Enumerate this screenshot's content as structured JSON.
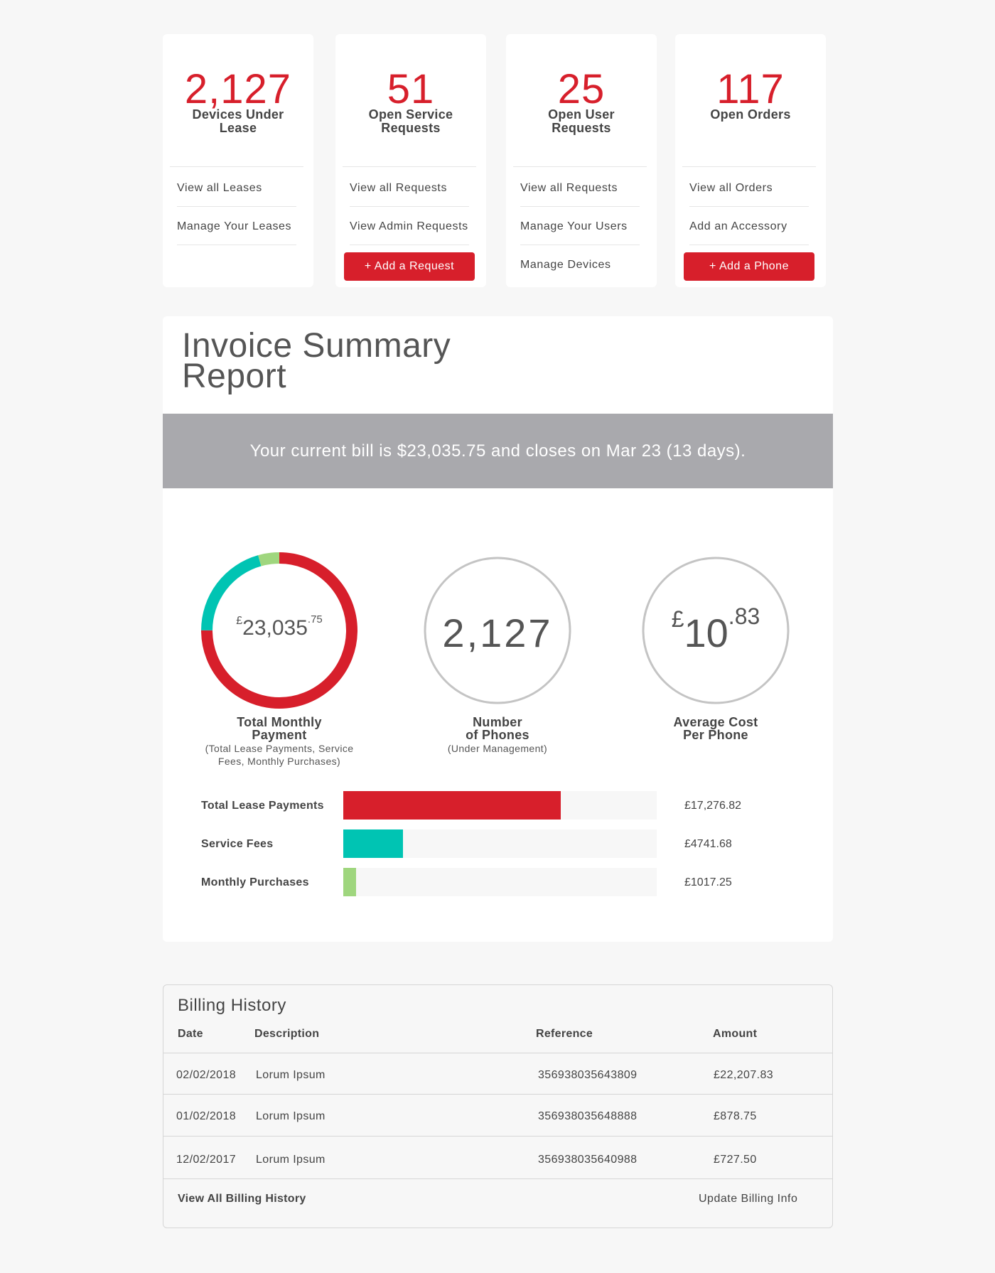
{
  "cards": [
    {
      "value": "2,127",
      "label": "Devices Under Lease",
      "links": [
        "View all Leases",
        "Manage Your Leases"
      ],
      "button": ""
    },
    {
      "value": "51",
      "label": "Open Service Requests",
      "links": [
        "View all Requests",
        "View Admin Requests"
      ],
      "button": "+ Add a Request"
    },
    {
      "value": "25",
      "label": "Open User Requests",
      "links": [
        "View all Requests",
        "Manage Your Users",
        "Manage Devices"
      ],
      "button": ""
    },
    {
      "value": "117",
      "label": "Open Orders",
      "links": [
        "View all Orders",
        "Add an Accessory"
      ],
      "button": "+ Add a Phone"
    }
  ],
  "invoice": {
    "title_line1": "Invoice Summary",
    "title_line2": "Report",
    "banner": "Your current bill is $23,035.75 and closes on Mar 23 (13 days).",
    "total": {
      "currency": "£",
      "whole": "23,035",
      "fraction": ".75",
      "label_line1": "Total Monthly",
      "label_line2": "Payment",
      "sub_line1": "(Total Lease Payments, Service",
      "sub_line2": "Fees, Monthly Purchases)"
    },
    "phones": {
      "value": "2,127",
      "label_line1": "Number",
      "label_line2": "of Phones",
      "sub": "(Under Management)"
    },
    "avg": {
      "currency": "£",
      "whole": "10",
      "fraction": ".83",
      "label_line1": "Average Cost",
      "label_line2": "Per Phone"
    }
  },
  "chart_data": {
    "type": "bar",
    "categories": [
      "Total Lease Payments",
      "Service Fees",
      "Monthly Purchases"
    ],
    "values": [
      17276.82,
      4741.68,
      1017.25
    ],
    "value_labels": [
      "£17,276.82",
      "£4741.68",
      "£1017.25"
    ],
    "xlim": [
      0,
      23035.75
    ],
    "title": "",
    "xlabel": "",
    "ylabel": ""
  },
  "colors": {
    "accent": "#d71f2b",
    "teal": "#00c4b3",
    "green": "#9fd67e",
    "banner": "#a9a9ad"
  },
  "billing": {
    "title": "Billing History",
    "columns": [
      "Date",
      "Description",
      "Reference",
      "Amount"
    ],
    "rows": [
      [
        "02/02/2018",
        "Lorum Ipsum",
        "356938035643809",
        "£22,207.83"
      ],
      [
        "01/02/2018",
        "Lorum Ipsum",
        "356938035648888",
        "£878.75"
      ],
      [
        "12/02/2017",
        "Lorum Ipsum",
        "356938035640988",
        "£727.50"
      ]
    ],
    "footer_left": "View All Billing History",
    "footer_right": "Update Billing Info"
  }
}
